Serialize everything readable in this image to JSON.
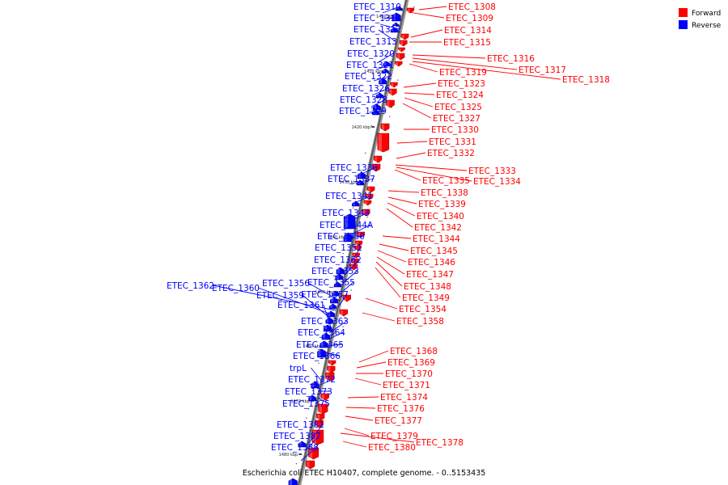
{
  "caption": "Escherichia coli ETEC H10407, complete genome. - 0..5153435",
  "legend": [
    {
      "label": "Forward",
      "color": "#ff0000"
    },
    {
      "label": "Reverse",
      "color": "#0000ff"
    }
  ],
  "strand_colors": {
    "forward": "#ff0000",
    "reverse": "#0000ff"
  },
  "ticks": [
    "1400 kbp",
    "1410 kbp",
    "1420 kbp",
    "1430 kbp",
    "1440 kbp",
    "1450 kbp",
    "1460 kbp",
    "1470 kbp",
    "1480 kbp"
  ],
  "reverse_genes": [
    "ETEC_1310",
    "ETEC_1311",
    "ETEC_1312",
    "ETEC_1313",
    "ETEC_1320",
    "ETEC_1321",
    "ETEC_1322",
    "ETEC_1326",
    "ETEC_1328",
    "ETEC_1329",
    "ETEC_1336",
    "ETEC_1337",
    "ETEC_1341",
    "ETEC_1343",
    "ETEC_1344A",
    "ETEC_1350",
    "ETEC_1351",
    "ETEC_1352",
    "ETEC_1353",
    "ETEC_1355",
    "ETEC_1356",
    "ETEC_1357",
    "ETEC_1362",
    "ETEC_1360",
    "ETEC_1359",
    "ETEC_1361",
    "ETEC_1363",
    "ETEC_1364",
    "ETEC_1365",
    "ETEC_1366",
    "trpL",
    "ETEC_1372",
    "ETEC_1373",
    "ETEC_1375",
    "ETEC_1381",
    "ETEC_1387",
    "ETEC_1388"
  ],
  "forward_genes": [
    "ETEC_1308",
    "ETEC_1309",
    "ETEC_1314",
    "ETEC_1315",
    "ETEC_1316",
    "ETEC_1317",
    "ETEC_1318",
    "ETEC_1319",
    "ETEC_1323",
    "ETEC_1324",
    "ETEC_1325",
    "ETEC_1327",
    "ETEC_1330",
    "ETEC_1331",
    "ETEC_1332",
    "ETEC_1333",
    "ETEC_1334",
    "ETEC_1335",
    "ETEC_1338",
    "ETEC_1339",
    "ETEC_1340",
    "ETEC_1342",
    "ETEC_1344",
    "ETEC_1345",
    "ETEC_1346",
    "ETEC_1347",
    "ETEC_1348",
    "ETEC_1349",
    "ETEC_1354",
    "ETEC_1358",
    "ETEC_1368",
    "ETEC_1369",
    "ETEC_1370",
    "ETEC_1371",
    "ETEC_1374",
    "ETEC_1376",
    "ETEC_1377",
    "ETEC_1379",
    "ETEC_1378",
    "ETEC_1380"
  ]
}
